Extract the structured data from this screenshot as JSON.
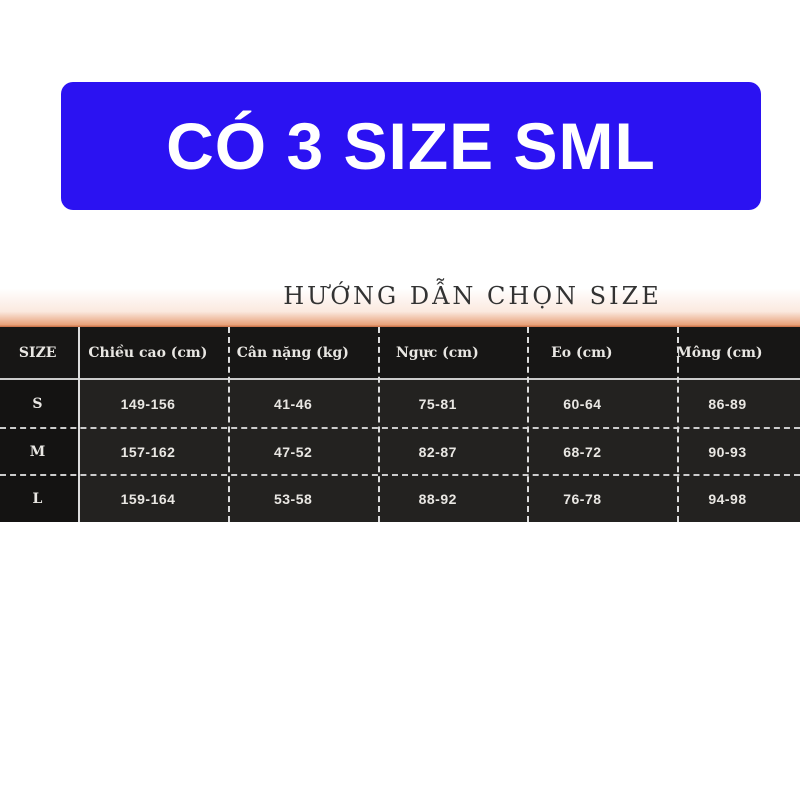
{
  "banner": {
    "text": "CÓ 3 SIZE SML",
    "color": "#2b12f2"
  },
  "chart": {
    "title": "HƯỚNG DẪN CHỌN SIZE",
    "headers": [
      "SIZE",
      "Chiều cao (cm)",
      "Cân nặng (kg)",
      "Ngực (cm)",
      "Eo (cm)",
      "Mông (cm)"
    ],
    "rows": [
      [
        "S",
        "149-156",
        "41-46",
        "75-81",
        "60-64",
        "86-89"
      ],
      [
        "M",
        "157-162",
        "47-52",
        "82-87",
        "68-72",
        "90-93"
      ],
      [
        "L",
        "159-164",
        "53-58",
        "88-92",
        "76-78",
        "94-98"
      ]
    ]
  }
}
